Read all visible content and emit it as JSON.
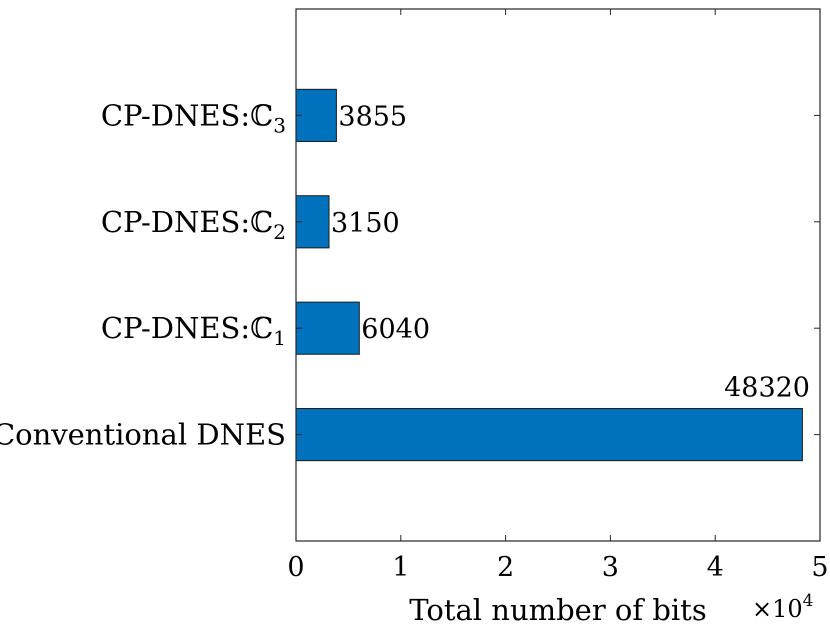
{
  "chart_data": {
    "type": "bar",
    "orientation": "horizontal",
    "categories": [
      {
        "base": "Conventional DNES",
        "sub": ""
      },
      {
        "base": "CP-DNES:ℂ",
        "sub": "1"
      },
      {
        "base": "CP-DNES:ℂ",
        "sub": "2"
      },
      {
        "base": "CP-DNES:ℂ",
        "sub": "3"
      }
    ],
    "values": [
      48320,
      6040,
      3150,
      3855
    ],
    "value_labels": [
      "48320",
      "6040",
      "3150",
      "3855"
    ],
    "xlabel": "Total number of bits",
    "x_multiplier": {
      "base": "×10",
      "exp": "4"
    },
    "xlim": [
      0,
      50000
    ],
    "x_ticks": [
      0,
      10000,
      20000,
      30000,
      40000,
      50000
    ],
    "x_tick_labels": [
      "0",
      "1",
      "2",
      "3",
      "4",
      "5"
    ],
    "grid": false,
    "bar_color": "#0072BD",
    "bar_edge_color": "#1a1a1a"
  }
}
